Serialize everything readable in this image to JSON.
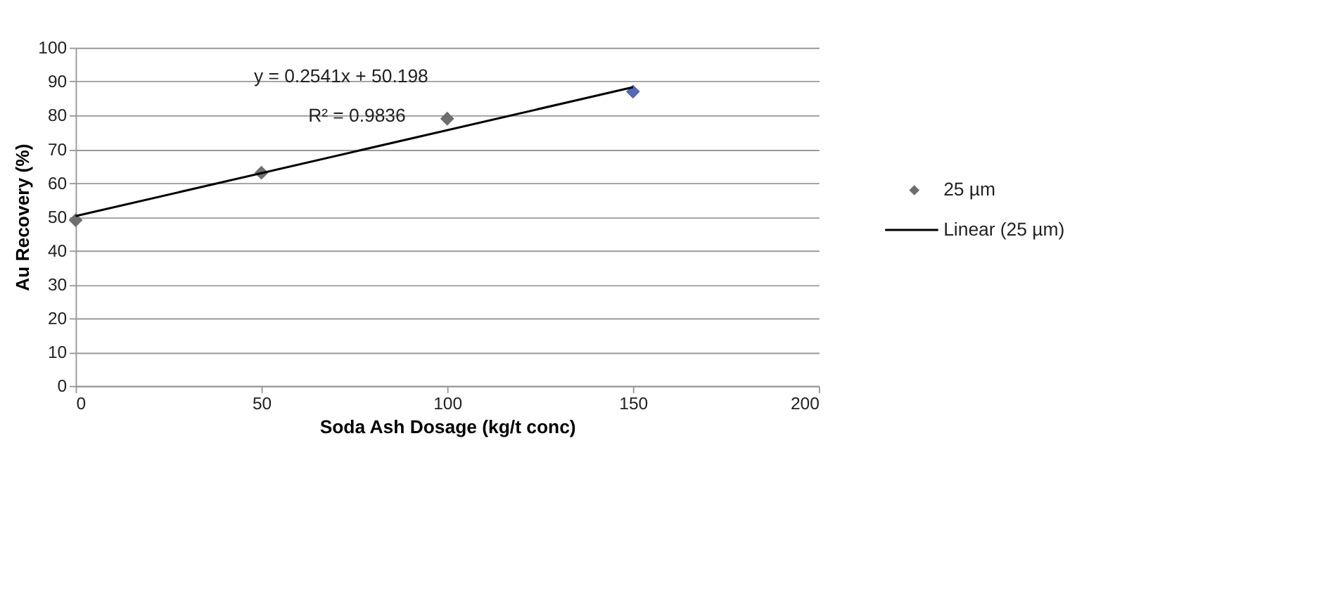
{
  "chart_data": {
    "type": "scatter",
    "xlabel": "Soda Ash Dosage (kg/t conc)",
    "ylabel": "Au Recovery (%)",
    "series": [
      {
        "name": "25 µm",
        "x": [
          0,
          50,
          100,
          150
        ],
        "values": [
          49,
          63,
          79,
          87
        ],
        "colors": [
          "#6e6e6e",
          "#6e6e6e",
          "#6e6e6e",
          "#5468b4"
        ],
        "color": "#6e6e6e",
        "marker": "diamond"
      },
      {
        "name": "Linear (25 µm)",
        "type": "line",
        "x": [
          0,
          150
        ],
        "values": [
          50.2,
          88.3
        ],
        "color": "#000000",
        "line_style": "solid"
      }
    ],
    "annotations": [
      "y = 0.2541x + 50.198",
      "R² = 0.9836"
    ],
    "xlim": [
      0,
      200
    ],
    "xticks": [
      0,
      50,
      100,
      150,
      200
    ],
    "ylim": [
      0,
      100
    ],
    "yticks": [
      0,
      10,
      20,
      30,
      40,
      50,
      60,
      70,
      80,
      90,
      100
    ],
    "grid": "y",
    "legend": "right"
  }
}
